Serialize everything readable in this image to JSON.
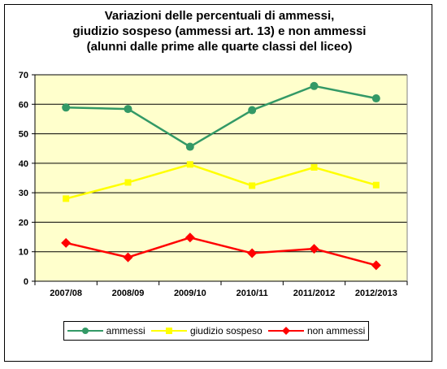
{
  "title_lines": [
    "Variazioni delle percentuali di ammessi,",
    "giudizio sospeso (ammessi art. 13) e non ammessi",
    "(alunni dalle prime alle quarte classi del liceo)"
  ],
  "colors": {
    "plot_background": "#ffffcc",
    "ammessi": "#339966",
    "giudizio_sospeso": "#ffff00",
    "non_ammessi": "#ff0000"
  },
  "chart_data": {
    "type": "line",
    "title": "Variazioni delle percentuali di ammessi, giudizio sospeso (ammessi art. 13) e non ammessi (alunni dalle prime alle quarte classi del liceo)",
    "categories": [
      "2007/08",
      "2008/09",
      "2009/10",
      "2010/11",
      "2011/2012",
      "2012/2013"
    ],
    "ylim": [
      0,
      70
    ],
    "yticks": [
      0,
      10,
      20,
      30,
      40,
      50,
      60,
      70
    ],
    "grid": true,
    "legend": "bottom",
    "series": [
      {
        "name": "ammessi",
        "marker": "circle",
        "color": "#339966",
        "values": [
          58.9,
          58.4,
          45.6,
          58.0,
          66.2,
          62.0
        ]
      },
      {
        "name": "giudizio sospeso",
        "marker": "square",
        "color": "#ffff00",
        "values": [
          28.0,
          33.5,
          39.6,
          32.4,
          38.6,
          32.6
        ]
      },
      {
        "name": "non ammessi",
        "marker": "diamond",
        "color": "#ff0000",
        "values": [
          13.0,
          8.1,
          14.8,
          9.5,
          11.0,
          5.4
        ]
      }
    ]
  }
}
